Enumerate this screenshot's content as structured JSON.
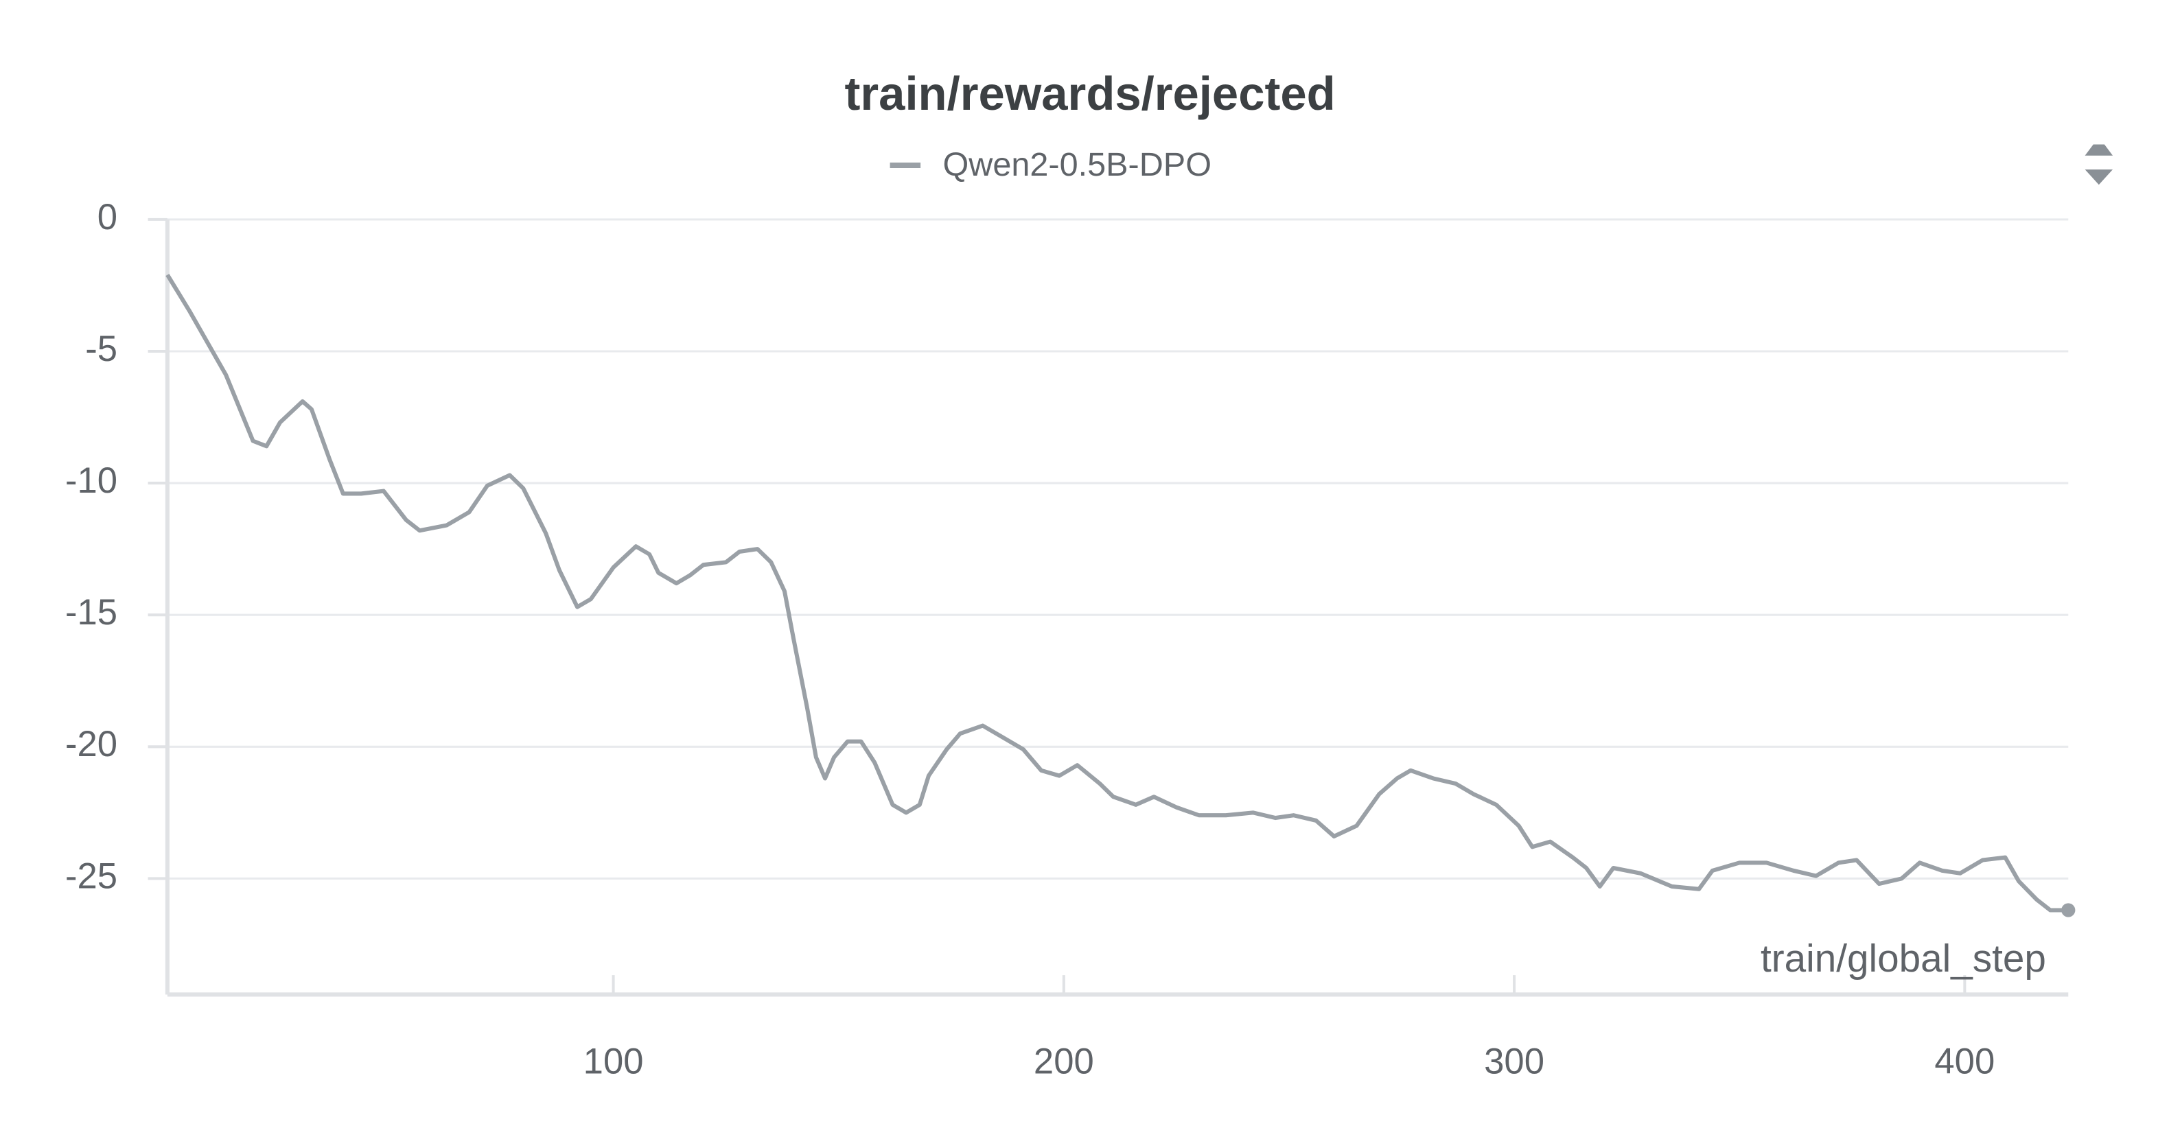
{
  "chart_data": {
    "type": "line",
    "title": "train/rewards/rejected",
    "x_label": "train/global_step",
    "x": [
      1,
      6,
      14,
      20,
      23,
      26,
      31,
      33,
      37,
      40,
      44,
      49,
      54,
      57,
      63,
      68,
      72,
      77,
      80,
      85,
      88,
      92,
      95,
      100,
      105,
      108,
      110,
      114,
      117,
      120,
      125,
      128,
      132,
      135,
      138,
      140,
      143,
      145,
      147,
      149,
      152,
      155,
      158,
      162,
      165,
      168,
      170,
      174,
      177,
      182,
      186,
      191,
      195,
      199,
      203,
      208,
      211,
      216,
      220,
      225,
      230,
      236,
      242,
      247,
      251,
      256,
      260,
      265,
      270,
      274,
      277,
      282,
      287,
      291,
      296,
      301,
      304,
      308,
      313,
      316,
      319,
      322,
      328,
      335,
      341,
      344,
      350,
      356,
      362,
      367,
      372,
      376,
      381,
      386,
      390,
      395,
      399,
      404,
      409,
      412,
      416,
      419,
      423
    ],
    "series": [
      {
        "name": "Qwen2-0.5B-DPO",
        "color": "#9aa0a6",
        "values": [
          -2.1,
          -3.5,
          -5.9,
          -8.4,
          -8.6,
          -7.7,
          -6.9,
          -7.2,
          -9.1,
          -10.4,
          -10.4,
          -10.3,
          -11.4,
          -11.8,
          -11.6,
          -11.1,
          -10.1,
          -9.7,
          -10.2,
          -11.9,
          -13.3,
          -14.7,
          -14.4,
          -13.2,
          -12.4,
          -12.7,
          -13.4,
          -13.8,
          -13.5,
          -13.1,
          -13.0,
          -12.6,
          -12.5,
          -13.0,
          -14.1,
          -15.9,
          -18.5,
          -20.4,
          -21.2,
          -20.4,
          -19.8,
          -19.8,
          -20.6,
          -22.2,
          -22.5,
          -22.2,
          -21.1,
          -20.1,
          -19.5,
          -19.2,
          -19.6,
          -20.1,
          -20.9,
          -21.1,
          -20.7,
          -21.4,
          -21.9,
          -22.2,
          -21.9,
          -22.3,
          -22.6,
          -22.6,
          -22.5,
          -22.7,
          -22.6,
          -22.8,
          -23.4,
          -23.0,
          -21.8,
          -21.2,
          -20.9,
          -21.2,
          -21.4,
          -21.8,
          -22.2,
          -23.0,
          -23.8,
          -23.6,
          -24.2,
          -24.6,
          -25.3,
          -24.6,
          -24.8,
          -25.3,
          -25.4,
          -24.7,
          -24.4,
          -24.4,
          -24.7,
          -24.9,
          -24.4,
          -24.3,
          -25.2,
          -25.0,
          -24.4,
          -24.7,
          -24.8,
          -24.3,
          -24.2,
          -25.1,
          -25.8,
          -26.2,
          -26.2
        ]
      }
    ],
    "xlim": [
      1,
      423
    ],
    "ylim": [
      -29.4,
      0
    ],
    "xticks": [
      100,
      200,
      300,
      400
    ],
    "yticks": [
      0,
      -5,
      -10,
      -15,
      -20,
      -25
    ],
    "grid": true
  }
}
